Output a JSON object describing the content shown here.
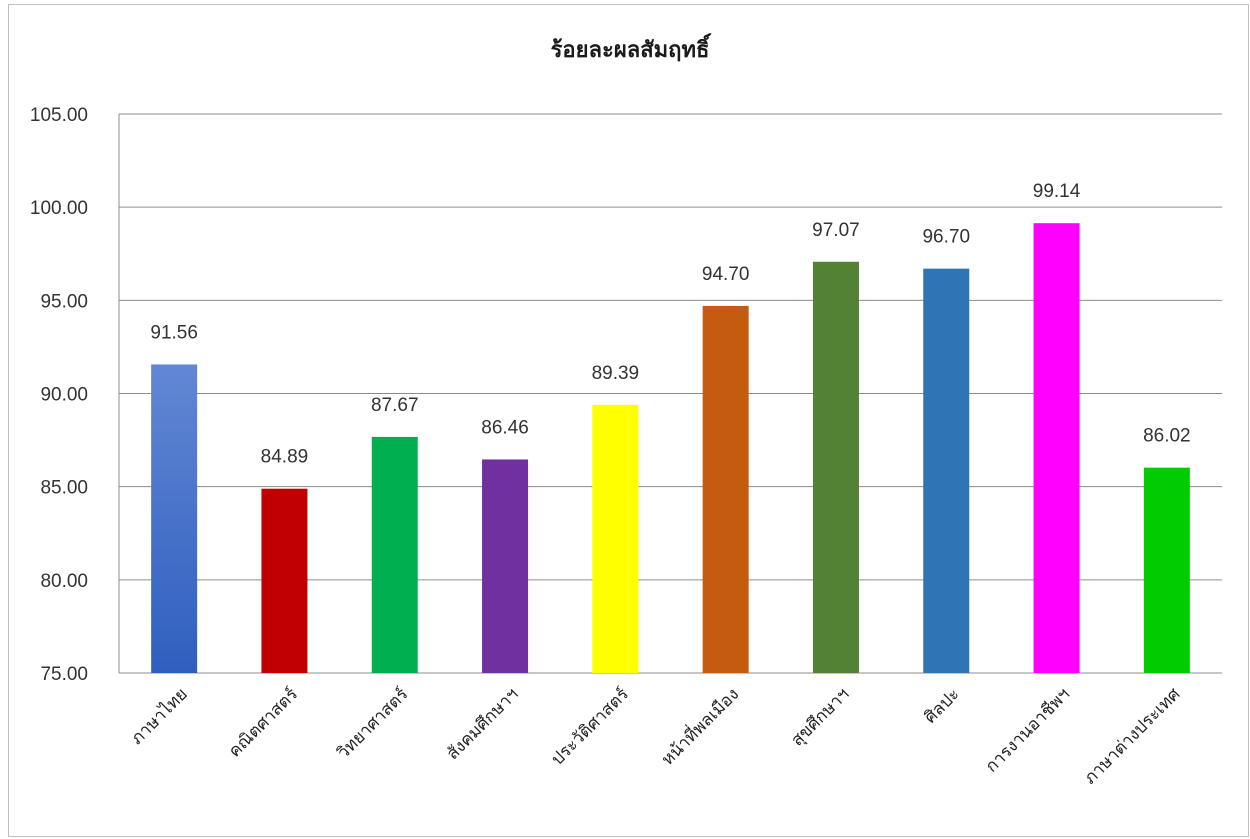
{
  "chart_data": {
    "type": "bar",
    "title": "ร้อยละผลสัมฤทธิ์",
    "categories": [
      "ภาษาไทย",
      "คณิตศาสตร์",
      "วิทยาศาสตร์",
      "สังคมศึกษาฯ",
      "ประวัติศาสตร์",
      "หน้าที่พลเมือง",
      "สุขศึกษาฯ",
      "ศิลปะ",
      "การงานอาชีพฯ",
      "ภาษาต่างประเทศ"
    ],
    "values": [
      91.56,
      84.89,
      87.67,
      86.46,
      89.39,
      94.7,
      97.07,
      96.7,
      99.14,
      86.02
    ],
    "value_labels": [
      "91.56",
      "84.89",
      "87.67",
      "86.46",
      "89.39",
      "94.70",
      "97.07",
      "96.70",
      "99.14",
      "86.02"
    ],
    "colors": [
      "#4472c4",
      "#c00000",
      "#00b050",
      "#7030a0",
      "#ffff00",
      "#c55a11",
      "#548235",
      "#2e75b6",
      "#ff00ff",
      "#00cc00"
    ],
    "ylim": [
      75,
      105
    ],
    "yticks": [
      "75.00",
      "80.00",
      "85.00",
      "90.00",
      "95.00",
      "100.00",
      "105.00"
    ],
    "grid": true,
    "legend": "none"
  }
}
